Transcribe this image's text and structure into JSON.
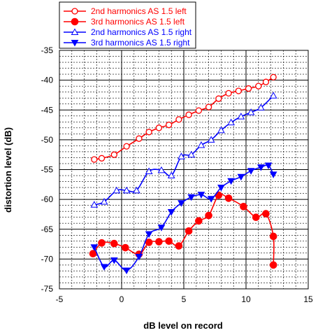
{
  "chart_data": {
    "type": "line",
    "xlabel": "dB level on record",
    "ylabel": "distortion level (dB)",
    "xlim": [
      -5,
      15
    ],
    "ylim": [
      -75,
      -35
    ],
    "x_ticks": [
      "-5",
      "0",
      "5",
      "10",
      "15"
    ],
    "y_ticks": [
      "-35",
      "-40",
      "-45",
      "-50",
      "-55",
      "-60",
      "-65",
      "-70",
      "-75"
    ],
    "grid": true,
    "legend_position": "top",
    "series": [
      {
        "name": "2nd harmonics AS 1.5 left",
        "color": "#ff0000",
        "marker": "open-circle",
        "points": [
          [
            -2.2,
            -53.3
          ],
          [
            -1.6,
            -53.1
          ],
          [
            -0.6,
            -52.5
          ],
          [
            0.4,
            -51.1
          ],
          [
            1.4,
            -49.8
          ],
          [
            2.2,
            -48.7
          ],
          [
            3.0,
            -48.0
          ],
          [
            3.8,
            -47.5
          ],
          [
            4.6,
            -46.6
          ],
          [
            5.4,
            -45.8
          ],
          [
            6.2,
            -45.1
          ],
          [
            7.0,
            -44.5
          ],
          [
            7.8,
            -43.1
          ],
          [
            8.6,
            -42.2
          ],
          [
            9.4,
            -41.8
          ],
          [
            10.2,
            -41.4
          ],
          [
            11.0,
            -41.0
          ],
          [
            11.6,
            -40.3
          ],
          [
            12.2,
            -39.5
          ]
        ]
      },
      {
        "name": "3rd harmonics AS 1.5 left",
        "color": "#ff0000",
        "marker": "filled-circle",
        "points": [
          [
            -2.3,
            -69.1
          ],
          [
            -1.6,
            -67.3
          ],
          [
            -0.6,
            -67.4
          ],
          [
            0.3,
            -68.1
          ],
          [
            1.4,
            -69.2
          ],
          [
            2.2,
            -67.2
          ],
          [
            3.0,
            -67.1
          ],
          [
            3.8,
            -67.0
          ],
          [
            4.6,
            -67.8
          ],
          [
            5.4,
            -65.3
          ],
          [
            6.2,
            -63.6
          ],
          [
            7.0,
            -62.7
          ],
          [
            7.8,
            -59.3
          ],
          [
            8.6,
            -59.8
          ],
          [
            9.8,
            -61.2
          ],
          [
            10.8,
            -63.0
          ],
          [
            11.6,
            -62.4
          ],
          [
            12.2,
            -66.2
          ],
          [
            12.2,
            -71.0
          ]
        ]
      },
      {
        "name": "2nd harmonics AS 1.5 right",
        "color": "#0000ff",
        "marker": "open-triangle-up",
        "points": [
          [
            -2.2,
            -60.9
          ],
          [
            -1.4,
            -60.4
          ],
          [
            -0.4,
            -58.5
          ],
          [
            0.4,
            -58.5
          ],
          [
            1.2,
            -58.5
          ],
          [
            2.2,
            -55.3
          ],
          [
            3.2,
            -55.1
          ],
          [
            4.0,
            -56.0
          ],
          [
            4.8,
            -52.8
          ],
          [
            5.6,
            -52.5
          ],
          [
            6.4,
            -50.9
          ],
          [
            7.2,
            -50.0
          ],
          [
            8.0,
            -48.4
          ],
          [
            8.8,
            -47.1
          ],
          [
            9.6,
            -46.1
          ],
          [
            10.4,
            -45.4
          ],
          [
            11.2,
            -44.6
          ],
          [
            12.2,
            -42.6
          ]
        ]
      },
      {
        "name": "3rd harmonics AS 1.5 right",
        "color": "#0000ff",
        "marker": "filled-triangle-down",
        "points": [
          [
            -2.2,
            -68.0
          ],
          [
            -1.4,
            -71.3
          ],
          [
            -0.6,
            -70.2
          ],
          [
            0.4,
            -71.9
          ],
          [
            1.4,
            -69.6
          ],
          [
            2.2,
            -65.8
          ],
          [
            3.2,
            -64.7
          ],
          [
            4.0,
            -62.1
          ],
          [
            4.8,
            -60.6
          ],
          [
            5.6,
            -59.6
          ],
          [
            6.4,
            -59.2
          ],
          [
            7.2,
            -59.9
          ],
          [
            8.0,
            -58.0
          ],
          [
            8.8,
            -56.9
          ],
          [
            9.6,
            -56.2
          ],
          [
            10.4,
            -55.2
          ],
          [
            11.2,
            -54.6
          ],
          [
            11.8,
            -54.3
          ],
          [
            12.2,
            -55.8
          ]
        ]
      }
    ]
  }
}
